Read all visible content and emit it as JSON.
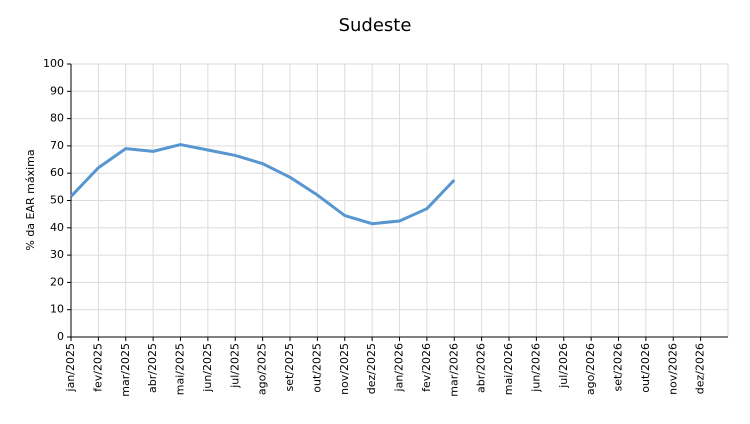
{
  "chart_data": {
    "type": "line",
    "title": "Sudeste",
    "y_label": "% da EAR máxima",
    "categories": [
      "jan/2025",
      "fev/2025",
      "mar/2025",
      "abr/2025",
      "mai/2025",
      "jun/2025",
      "jul/2025",
      "ago/2025",
      "set/2025",
      "out/2025",
      "nov/2025",
      "dez/2025",
      "jan/2026",
      "fev/2026",
      "mar/2026",
      "abr/2026",
      "mai/2026",
      "jun/2026",
      "jul/2026",
      "ago/2026",
      "set/2026",
      "out/2026",
      "nov/2026",
      "dez/2026"
    ],
    "series": [
      {
        "name": "Sudeste",
        "color": "#5796d0",
        "values": [
          51.5,
          62,
          69,
          68,
          70.5,
          68.5,
          66.5,
          63.5,
          58.5,
          52,
          44.5,
          41.5,
          42.5,
          47,
          57.5,
          null,
          null,
          null,
          null,
          null,
          null,
          null,
          null,
          null
        ]
      }
    ],
    "ylim": [
      0,
      100
    ],
    "yticks": [
      0,
      10,
      20,
      30,
      40,
      50,
      60,
      70,
      80,
      90,
      100
    ],
    "grid": true
  }
}
